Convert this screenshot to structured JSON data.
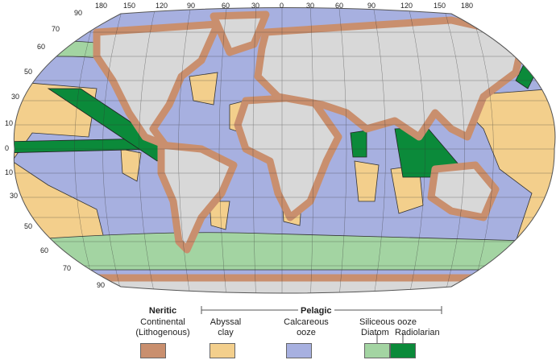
{
  "map": {
    "longitude_labels": [
      "180",
      "150",
      "120",
      "90",
      "60",
      "30",
      "0",
      "30",
      "60",
      "90",
      "120",
      "150",
      "180"
    ],
    "latitude_labels_left": [
      "90",
      "70",
      "60",
      "50",
      "30",
      "10",
      "0",
      "10",
      "30",
      "50",
      "60",
      "70",
      "90"
    ]
  },
  "legend": {
    "neritic_title": "Neritic",
    "pelagic_title": "Pelagic",
    "items": [
      {
        "label": "Continental (Lithogenous)",
        "color": "#c98f6e"
      },
      {
        "label": "Abyssal clay",
        "color": "#f3cf8c"
      },
      {
        "label": "Calcareous ooze",
        "color": "#a7b0e0"
      },
      {
        "label": "Diatom",
        "color": "#a3d4a2"
      },
      {
        "label": "Radiolarian",
        "color": "#0b8a3a"
      }
    ],
    "siliceous_title": "Siliceous ooze"
  },
  "colors": {
    "land": "#d8d8d8",
    "continental": "#c98f6e",
    "abyssal_clay": "#f3cf8c",
    "calcareous": "#a7b0e0",
    "diatom": "#a3d4a2",
    "radiolarian": "#0b8a3a"
  }
}
